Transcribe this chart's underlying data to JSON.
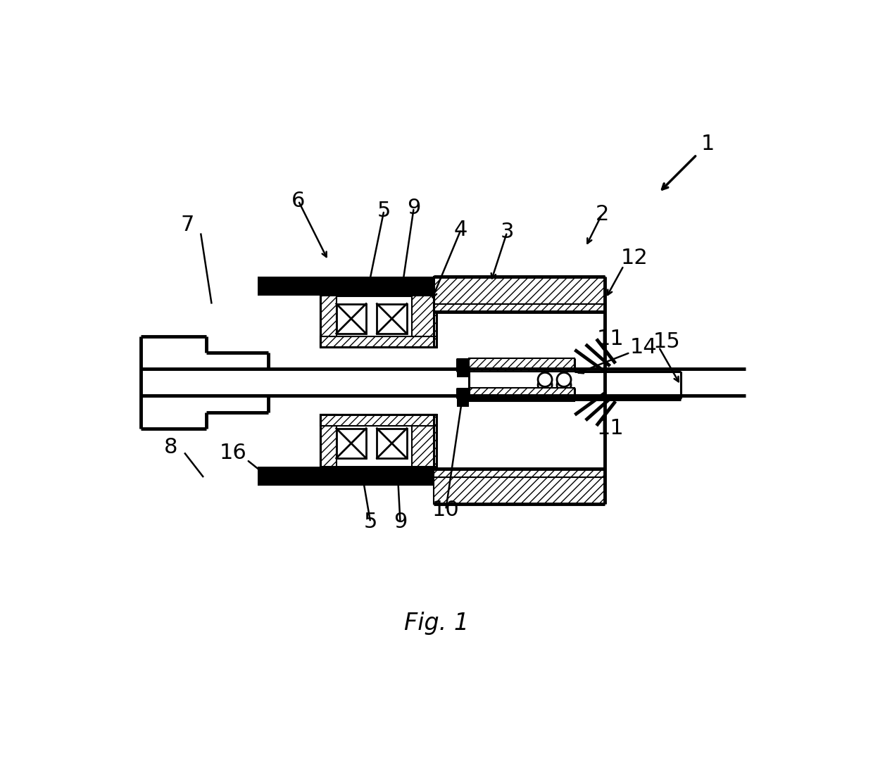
{
  "bg_color": "#ffffff",
  "line_color": "#000000",
  "fig_label": "Fig. 1",
  "fontsize_label": 22,
  "fontsize_fig": 24
}
